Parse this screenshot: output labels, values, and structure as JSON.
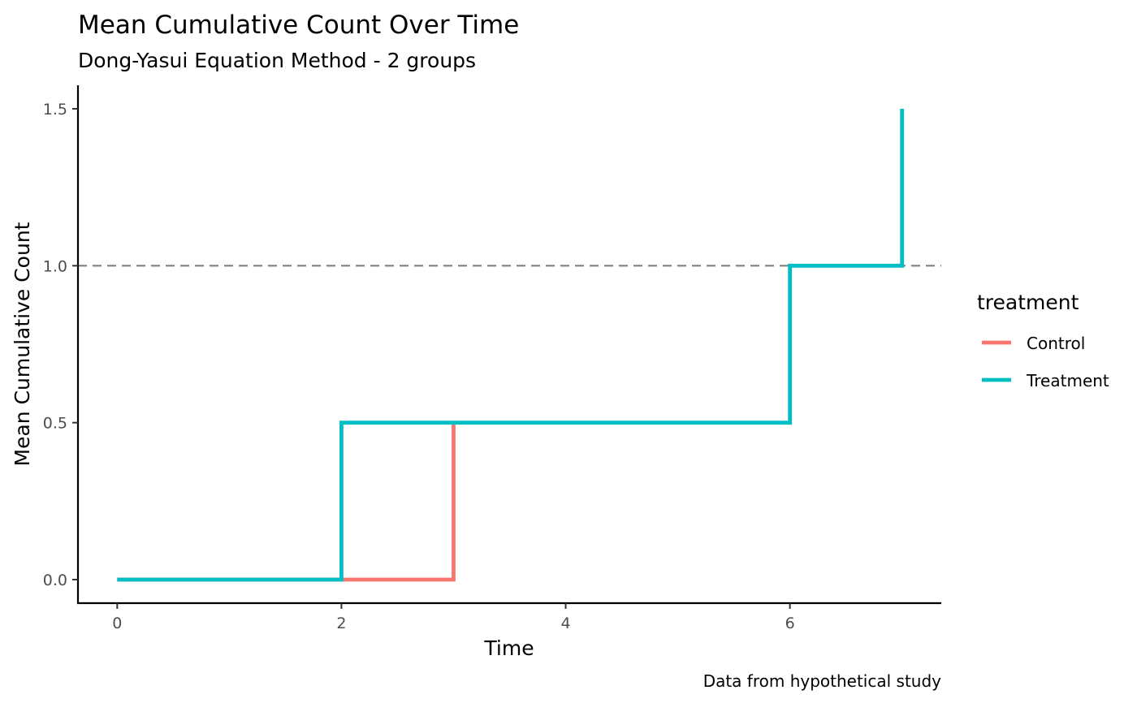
{
  "chart_data": {
    "type": "line",
    "step": true,
    "title": "Mean Cumulative Count Over Time",
    "subtitle": "Dong-Yasui Equation Method - 2 groups",
    "xlabel": "Time",
    "ylabel": "Mean Cumulative Count",
    "caption": "Data from hypothetical study",
    "xlim": [
      -0.35,
      7.35
    ],
    "ylim": [
      -0.075,
      1.575
    ],
    "x_ticks": [
      0,
      2,
      4,
      6
    ],
    "x_tick_labels": [
      "0",
      "2",
      "4",
      "6"
    ],
    "y_ticks": [
      0,
      0.5,
      1,
      1.5
    ],
    "y_tick_labels": [
      "0.0",
      "0.5",
      "1.0",
      "1.5"
    ],
    "grid": false,
    "reference_line": {
      "y": 1.0,
      "style": "dashed",
      "color": "#808080"
    },
    "legend": {
      "title": "treatment",
      "position": "right"
    },
    "series": [
      {
        "name": "Control",
        "color": "#F8766D",
        "points": [
          [
            0,
            0
          ],
          [
            3,
            0
          ],
          [
            3,
            0.5
          ]
        ]
      },
      {
        "name": "Treatment",
        "color": "#00BFC4",
        "points": [
          [
            0,
            0
          ],
          [
            2,
            0
          ],
          [
            2,
            0.5
          ],
          [
            6,
            0.5
          ],
          [
            6,
            1.0
          ],
          [
            7,
            1.0
          ],
          [
            7,
            1.5
          ]
        ]
      }
    ]
  }
}
